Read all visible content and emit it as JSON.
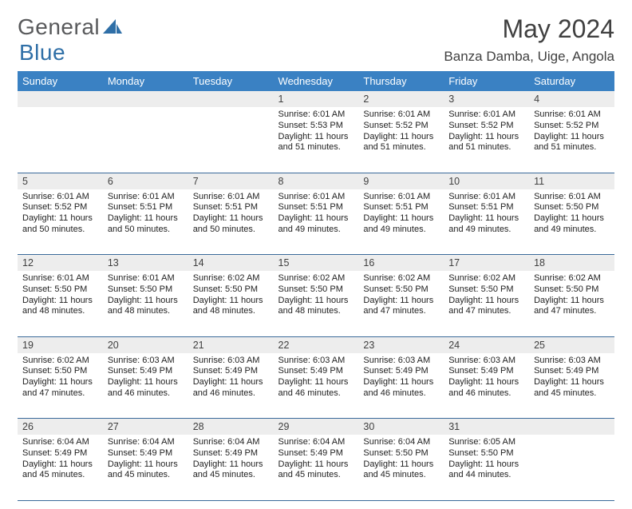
{
  "brand": {
    "name1": "General",
    "name2": "Blue",
    "color_gray": "#58595b",
    "color_blue": "#2f6fa7",
    "fontsize": 28
  },
  "header": {
    "title": "May 2024",
    "subtitle": "Banza Damba, Uige, Angola",
    "title_fontsize": 32,
    "subtitle_fontsize": 17,
    "text_color": "#404040"
  },
  "calendar": {
    "day_header_bg": "#3a81c3",
    "day_header_color": "#ffffff",
    "daynum_bg": "#ededed",
    "border_color": "#3a6a9a",
    "body_fontsize": 11,
    "days": [
      "Sunday",
      "Monday",
      "Tuesday",
      "Wednesday",
      "Thursday",
      "Friday",
      "Saturday"
    ],
    "weeks": [
      [
        {
          "n": "",
          "body": ""
        },
        {
          "n": "",
          "body": ""
        },
        {
          "n": "",
          "body": ""
        },
        {
          "n": "1",
          "body": "Sunrise: 6:01 AM\nSunset: 5:53 PM\nDaylight: 11 hours and 51 minutes."
        },
        {
          "n": "2",
          "body": "Sunrise: 6:01 AM\nSunset: 5:52 PM\nDaylight: 11 hours and 51 minutes."
        },
        {
          "n": "3",
          "body": "Sunrise: 6:01 AM\nSunset: 5:52 PM\nDaylight: 11 hours and 51 minutes."
        },
        {
          "n": "4",
          "body": "Sunrise: 6:01 AM\nSunset: 5:52 PM\nDaylight: 11 hours and 51 minutes."
        }
      ],
      [
        {
          "n": "5",
          "body": "Sunrise: 6:01 AM\nSunset: 5:52 PM\nDaylight: 11 hours and 50 minutes."
        },
        {
          "n": "6",
          "body": "Sunrise: 6:01 AM\nSunset: 5:51 PM\nDaylight: 11 hours and 50 minutes."
        },
        {
          "n": "7",
          "body": "Sunrise: 6:01 AM\nSunset: 5:51 PM\nDaylight: 11 hours and 50 minutes."
        },
        {
          "n": "8",
          "body": "Sunrise: 6:01 AM\nSunset: 5:51 PM\nDaylight: 11 hours and 49 minutes."
        },
        {
          "n": "9",
          "body": "Sunrise: 6:01 AM\nSunset: 5:51 PM\nDaylight: 11 hours and 49 minutes."
        },
        {
          "n": "10",
          "body": "Sunrise: 6:01 AM\nSunset: 5:51 PM\nDaylight: 11 hours and 49 minutes."
        },
        {
          "n": "11",
          "body": "Sunrise: 6:01 AM\nSunset: 5:50 PM\nDaylight: 11 hours and 49 minutes."
        }
      ],
      [
        {
          "n": "12",
          "body": "Sunrise: 6:01 AM\nSunset: 5:50 PM\nDaylight: 11 hours and 48 minutes."
        },
        {
          "n": "13",
          "body": "Sunrise: 6:01 AM\nSunset: 5:50 PM\nDaylight: 11 hours and 48 minutes."
        },
        {
          "n": "14",
          "body": "Sunrise: 6:02 AM\nSunset: 5:50 PM\nDaylight: 11 hours and 48 minutes."
        },
        {
          "n": "15",
          "body": "Sunrise: 6:02 AM\nSunset: 5:50 PM\nDaylight: 11 hours and 48 minutes."
        },
        {
          "n": "16",
          "body": "Sunrise: 6:02 AM\nSunset: 5:50 PM\nDaylight: 11 hours and 47 minutes."
        },
        {
          "n": "17",
          "body": "Sunrise: 6:02 AM\nSunset: 5:50 PM\nDaylight: 11 hours and 47 minutes."
        },
        {
          "n": "18",
          "body": "Sunrise: 6:02 AM\nSunset: 5:50 PM\nDaylight: 11 hours and 47 minutes."
        }
      ],
      [
        {
          "n": "19",
          "body": "Sunrise: 6:02 AM\nSunset: 5:50 PM\nDaylight: 11 hours and 47 minutes."
        },
        {
          "n": "20",
          "body": "Sunrise: 6:03 AM\nSunset: 5:49 PM\nDaylight: 11 hours and 46 minutes."
        },
        {
          "n": "21",
          "body": "Sunrise: 6:03 AM\nSunset: 5:49 PM\nDaylight: 11 hours and 46 minutes."
        },
        {
          "n": "22",
          "body": "Sunrise: 6:03 AM\nSunset: 5:49 PM\nDaylight: 11 hours and 46 minutes."
        },
        {
          "n": "23",
          "body": "Sunrise: 6:03 AM\nSunset: 5:49 PM\nDaylight: 11 hours and 46 minutes."
        },
        {
          "n": "24",
          "body": "Sunrise: 6:03 AM\nSunset: 5:49 PM\nDaylight: 11 hours and 46 minutes."
        },
        {
          "n": "25",
          "body": "Sunrise: 6:03 AM\nSunset: 5:49 PM\nDaylight: 11 hours and 45 minutes."
        }
      ],
      [
        {
          "n": "26",
          "body": "Sunrise: 6:04 AM\nSunset: 5:49 PM\nDaylight: 11 hours and 45 minutes."
        },
        {
          "n": "27",
          "body": "Sunrise: 6:04 AM\nSunset: 5:49 PM\nDaylight: 11 hours and 45 minutes."
        },
        {
          "n": "28",
          "body": "Sunrise: 6:04 AM\nSunset: 5:49 PM\nDaylight: 11 hours and 45 minutes."
        },
        {
          "n": "29",
          "body": "Sunrise: 6:04 AM\nSunset: 5:49 PM\nDaylight: 11 hours and 45 minutes."
        },
        {
          "n": "30",
          "body": "Sunrise: 6:04 AM\nSunset: 5:50 PM\nDaylight: 11 hours and 45 minutes."
        },
        {
          "n": "31",
          "body": "Sunrise: 6:05 AM\nSunset: 5:50 PM\nDaylight: 11 hours and 44 minutes."
        },
        {
          "n": "",
          "body": ""
        }
      ]
    ]
  }
}
